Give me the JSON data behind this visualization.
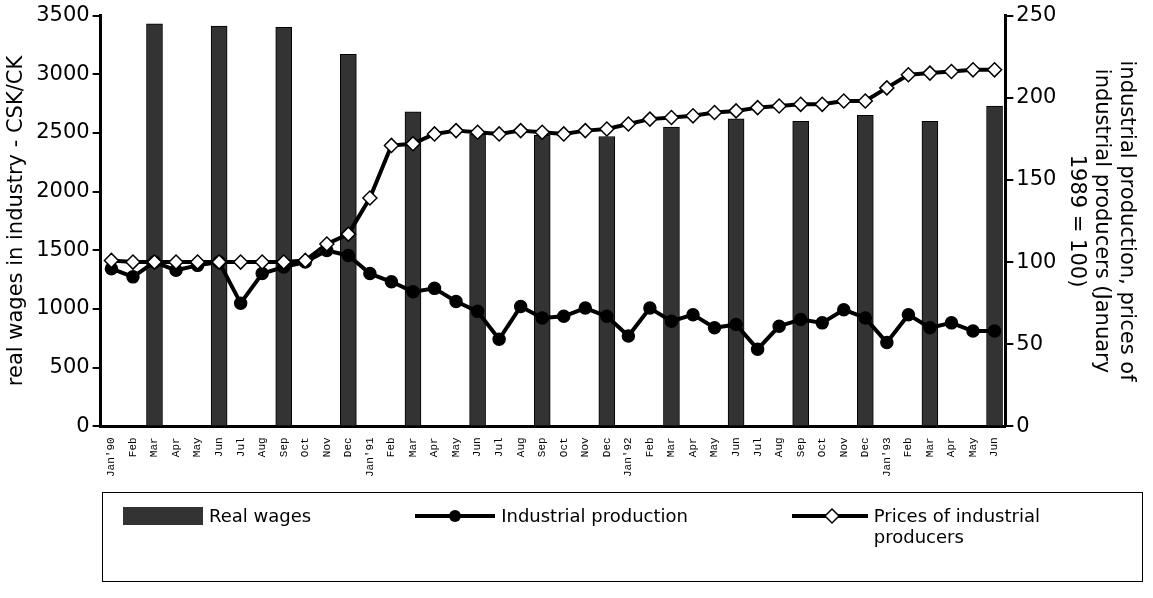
{
  "chart_data": {
    "type": "bar",
    "ylabel": "real wages in industry - CSK/CK",
    "y2label": "industrial production, prices of\nindustrial producers (January\n1989 = 100)",
    "categories": [
      "Jan'90",
      "Feb",
      "Mar",
      "Apr",
      "May",
      "Jun",
      "Jul",
      "Aug",
      "Sep",
      "Oct",
      "Nov",
      "Dec",
      "Jan'91",
      "Feb",
      "Mar",
      "Apr",
      "May",
      "Jun",
      "Jul",
      "Aug",
      "Sep",
      "Oct",
      "Nov",
      "Dec",
      "Jan'92",
      "Feb",
      "Mar",
      "Apr",
      "May",
      "Jun",
      "Jul",
      "Aug",
      "Sep",
      "Oct",
      "Nov",
      "Dec",
      "Jan'93",
      "Feb",
      "Mar",
      "Apr",
      "May",
      "Jun"
    ],
    "series": [
      {
        "name": "Real wages",
        "color": "#333333",
        "values": [
          null,
          null,
          3430,
          null,
          null,
          3410,
          null,
          null,
          3400,
          null,
          null,
          3170,
          null,
          null,
          2680,
          null,
          null,
          2490,
          null,
          null,
          2480,
          null,
          null,
          2470,
          null,
          null,
          2550,
          null,
          null,
          2620,
          null,
          null,
          2600,
          null,
          null,
          2650,
          null,
          null,
          2600,
          null,
          null,
          2730
        ]
      },
      {
        "name": "Industrial production",
        "type": "line",
        "axis": "y2",
        "color": "#000000",
        "marker": "circle",
        "values": [
          96,
          91,
          100,
          95,
          98,
          100,
          75,
          93,
          97,
          100,
          107,
          104,
          93,
          88,
          82,
          84,
          76,
          70,
          53,
          73,
          66,
          67,
          72,
          67,
          55,
          72,
          64,
          68,
          60,
          62,
          47,
          61,
          65,
          63,
          71,
          66,
          51,
          68,
          60,
          63,
          58,
          58
        ]
      },
      {
        "name": "Prices of industrial producers",
        "type": "line",
        "axis": "y2",
        "color": "#000000",
        "marker": "diamond",
        "values": [
          101,
          100,
          100,
          100,
          100,
          100,
          100,
          100,
          100,
          101,
          111,
          117,
          139,
          171,
          172,
          178,
          180,
          179,
          178,
          180,
          179,
          178,
          180,
          181,
          184,
          187,
          188,
          189,
          191,
          192,
          194,
          195,
          196,
          196,
          198,
          198,
          206,
          214,
          215,
          216,
          217,
          217
        ]
      }
    ],
    "ylim": [
      0,
      3500
    ],
    "yticks": [
      0,
      500,
      1000,
      1500,
      2000,
      2500,
      3000,
      3500
    ],
    "y2lim": [
      0,
      250
    ],
    "y2ticks": [
      0,
      50,
      100,
      150,
      200,
      250
    ],
    "grid": false,
    "legend": "bottom"
  }
}
